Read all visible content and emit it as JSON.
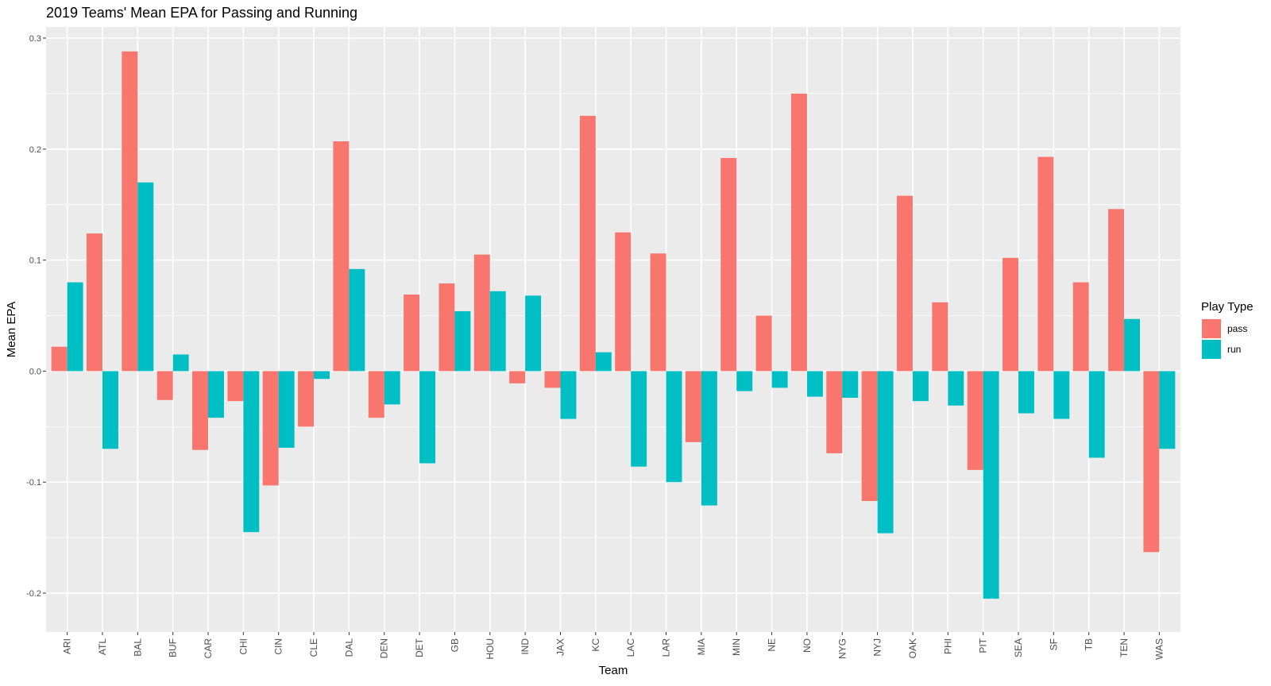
{
  "chart_data": {
    "type": "bar",
    "title": "2019 Teams' Mean EPA for Passing and Running",
    "xlabel": "Team",
    "ylabel": "Mean EPA",
    "ylim": [
      -0.235,
      0.31
    ],
    "yticks": [
      -0.2,
      -0.1,
      0.0,
      0.1,
      0.2,
      0.3
    ],
    "ytick_labels": [
      "-0.2",
      "-0.1",
      "0.0",
      "0.1",
      "0.2",
      "0.3"
    ],
    "grid": true,
    "legend_position": "right",
    "legend_title": "Play Type",
    "categories": [
      "ARI",
      "ATL",
      "BAL",
      "BUF",
      "CAR",
      "CHI",
      "CIN",
      "CLE",
      "DAL",
      "DEN",
      "DET",
      "GB",
      "HOU",
      "IND",
      "JAX",
      "KC",
      "LAC",
      "LAR",
      "MIA",
      "MIN",
      "NE",
      "NO",
      "NYG",
      "NYJ",
      "OAK",
      "PHI",
      "PIT",
      "SEA",
      "SF",
      "TB",
      "TEN",
      "WAS"
    ],
    "series": [
      {
        "name": "pass",
        "color": "#F8766D",
        "values": [
          0.022,
          0.124,
          0.288,
          -0.026,
          -0.071,
          -0.027,
          -0.103,
          -0.05,
          0.207,
          -0.042,
          0.069,
          0.079,
          0.105,
          -0.011,
          -0.015,
          0.23,
          0.125,
          0.106,
          -0.064,
          0.192,
          0.05,
          0.25,
          -0.074,
          -0.117,
          0.158,
          0.062,
          -0.089,
          0.102,
          0.193,
          0.08,
          0.146,
          -0.163
        ]
      },
      {
        "name": "run",
        "color": "#00BFC4",
        "values": [
          0.08,
          -0.07,
          0.17,
          0.015,
          -0.042,
          -0.145,
          -0.069,
          -0.007,
          0.092,
          -0.03,
          -0.083,
          0.054,
          0.072,
          0.068,
          -0.043,
          0.017,
          -0.086,
          -0.1,
          -0.121,
          -0.018,
          -0.015,
          -0.023,
          -0.024,
          -0.146,
          -0.027,
          -0.031,
          -0.205,
          -0.038,
          -0.043,
          -0.078,
          0.047,
          -0.07
        ]
      }
    ]
  },
  "colors": {
    "panel_background": "#EBEBEB",
    "gridline": "#FFFFFF",
    "axis_text": "#4D4D4D",
    "title_text": "#000000"
  }
}
